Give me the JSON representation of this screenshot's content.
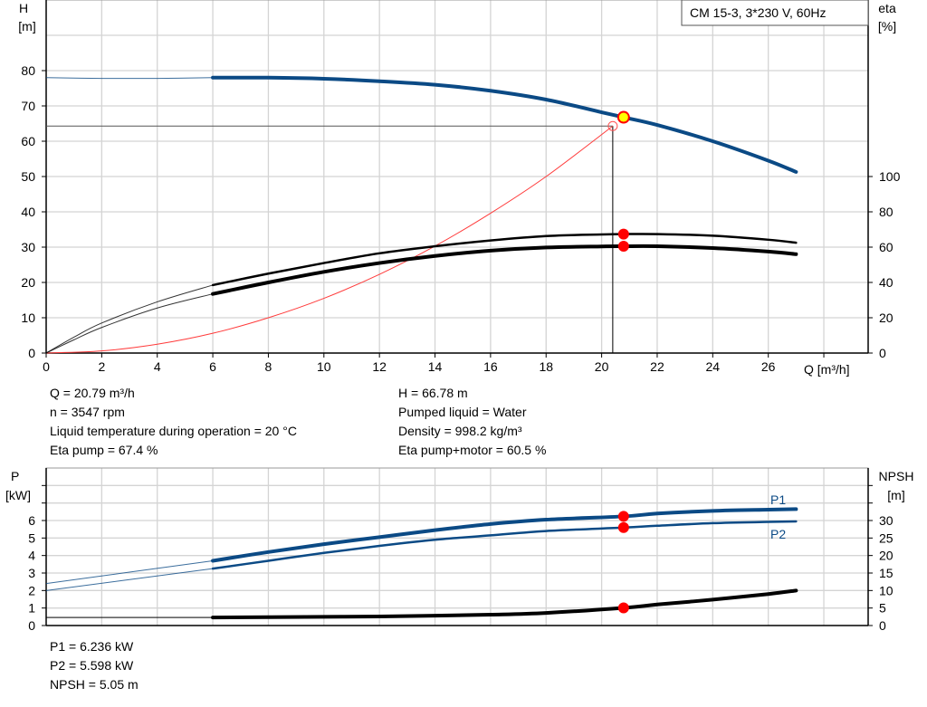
{
  "chart_data": [
    {
      "type": "line",
      "title": "CM 15-3, 3*230 V, 60Hz",
      "xlabel": "Q [m³/h]",
      "ylabel": "H [m]",
      "ylabel_name": "H",
      "ylabel_unit": "[m]",
      "y2label_name": "eta",
      "y2label_unit": "[%]",
      "xlim": [
        0,
        28
      ],
      "ylim": [
        0,
        100
      ],
      "y2lim": [
        0,
        200
      ],
      "x_ticks": [
        0,
        2,
        4,
        6,
        8,
        10,
        12,
        14,
        16,
        18,
        20,
        22,
        24,
        26
      ],
      "y_ticks": [
        0,
        10,
        20,
        30,
        40,
        50,
        60,
        70,
        80
      ],
      "y2_ticks": [
        0,
        20,
        40,
        60,
        80,
        100
      ],
      "grid": true,
      "series": [
        {
          "key": "H",
          "axis": "left",
          "color": "#0b4a85",
          "thick_from": 6,
          "x": [
            0,
            2,
            4,
            6,
            8,
            10,
            12,
            14,
            16,
            18,
            20,
            20.79,
            22,
            24,
            26,
            27
          ],
          "y": [
            78,
            77.8,
            77.8,
            78,
            78,
            77.7,
            77,
            76,
            74.3,
            71.8,
            68.2,
            66.78,
            64.6,
            60,
            54.5,
            51.3
          ]
        },
        {
          "key": "eta_pump",
          "axis": "right",
          "color": "#000000",
          "thick_from": 6,
          "x": [
            0,
            1,
            2,
            4,
            6,
            8,
            10,
            12,
            14,
            16,
            18,
            20,
            20.79,
            22,
            24,
            26,
            27
          ],
          "y": [
            0,
            9,
            17,
            29,
            38.5,
            45,
            51,
            56.5,
            60.5,
            63.8,
            66.3,
            67.2,
            67.4,
            67.4,
            66.5,
            64.2,
            62.5
          ]
        },
        {
          "key": "eta_pump_motor",
          "axis": "right",
          "color": "#000000",
          "thick_from": 6,
          "x": [
            0,
            1,
            2,
            4,
            6,
            8,
            10,
            12,
            14,
            16,
            18,
            20,
            20.79,
            22,
            24,
            26,
            27
          ],
          "y": [
            0,
            7.5,
            14.5,
            25.5,
            33.5,
            40,
            46,
            51,
            55,
            58,
            59.8,
            60.4,
            60.5,
            60.5,
            59.5,
            57.5,
            56
          ]
        },
        {
          "key": "system_curve",
          "axis": "left",
          "color": "#ff3b3b",
          "x": [
            0,
            2,
            4,
            6,
            8,
            10,
            12,
            14,
            16,
            18,
            20.4
          ],
          "y": [
            0,
            0.6,
            2.5,
            5.6,
            10,
            15.5,
            22.3,
            30.3,
            39.6,
            50,
            64.3
          ]
        }
      ],
      "duty_point": {
        "Q": 20.79,
        "H": 66.78,
        "eta_pump": 67.4,
        "eta_pump_motor": 60.5
      },
      "required_point": {
        "Q": 20.4,
        "H": 64.3
      }
    },
    {
      "type": "line",
      "ylabel_name": "P",
      "ylabel_unit": "[kW]",
      "y2label_name": "NPSH",
      "y2label_unit": "[m]",
      "xlim": [
        0,
        28
      ],
      "ylim": [
        0,
        9
      ],
      "y2lim": [
        0,
        45
      ],
      "y_ticks": [
        0,
        1,
        2,
        3,
        4,
        5,
        6
      ],
      "y2_ticks": [
        0,
        5,
        10,
        15,
        20,
        25,
        30
      ],
      "grid": true,
      "series": [
        {
          "name": "P1",
          "axis": "left",
          "color": "#0b4a85",
          "thick_from": 6,
          "x": [
            0,
            6,
            8,
            10,
            12,
            14,
            16,
            18,
            20.79,
            22,
            24,
            26,
            27
          ],
          "y": [
            2.4,
            3.7,
            4.2,
            4.65,
            5.05,
            5.45,
            5.8,
            6.05,
            6.236,
            6.4,
            6.55,
            6.62,
            6.65
          ]
        },
        {
          "name": "P2",
          "axis": "left",
          "color": "#0b4a85",
          "thick_from": 6,
          "x": [
            0,
            6,
            8,
            10,
            12,
            14,
            16,
            18,
            20.79,
            22,
            24,
            26,
            27
          ],
          "y": [
            2.0,
            3.25,
            3.7,
            4.15,
            4.55,
            4.9,
            5.15,
            5.4,
            5.598,
            5.7,
            5.85,
            5.92,
            5.95
          ]
        },
        {
          "key": "NPSH",
          "axis": "right",
          "color": "#000000",
          "thick_from": 6,
          "x": [
            0,
            6,
            8,
            10,
            12,
            14,
            16,
            18,
            20.79,
            22,
            24,
            26,
            27
          ],
          "y": [
            2.3,
            2.3,
            2.4,
            2.5,
            2.6,
            2.8,
            3.1,
            3.6,
            5.05,
            6.0,
            7.4,
            9.0,
            10.0
          ]
        }
      ],
      "duty_point": {
        "Q": 20.79,
        "P1": 6.236,
        "P2": 5.598,
        "NPSH": 5.05
      }
    }
  ],
  "info": {
    "left": [
      "Q = 20.79 m³/h",
      "n = 3547 rpm",
      "Liquid temperature during operation = 20 °C",
      "Eta pump = 67.4 %"
    ],
    "right": [
      "H = 66.78 m",
      "Pumped liquid = Water",
      "Density = 998.2 kg/m³",
      "Eta pump+motor = 60.5 %"
    ],
    "bottom": [
      "P1 = 6.236 kW",
      "P2 = 5.598 kW",
      "NPSH = 5.05 m"
    ]
  }
}
